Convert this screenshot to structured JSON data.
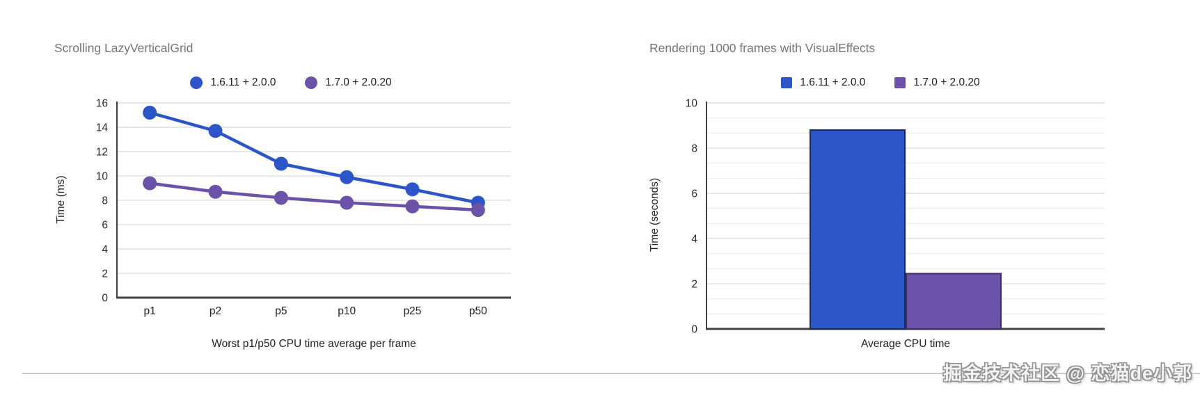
{
  "chart_data": [
    {
      "type": "line",
      "title": "Scrolling LazyVerticalGrid",
      "categories": [
        "p1",
        "p2",
        "p5",
        "p10",
        "p25",
        "p50"
      ],
      "series": [
        {
          "name": "1.6.11 + 2.0.0",
          "color": "#2c55c8",
          "values": [
            15.2,
            13.7,
            11.0,
            9.9,
            8.9,
            7.8
          ]
        },
        {
          "name": "1.7.0 + 2.0.20",
          "color": "#6a52a8",
          "values": [
            9.4,
            8.7,
            8.2,
            7.8,
            7.5,
            7.2
          ]
        }
      ],
      "xlabel": "Worst p1/p50 CPU time average per frame",
      "ylabel": "Time (ms)",
      "ylim": [
        0,
        16
      ],
      "yticks": [
        0,
        2,
        4,
        6,
        8,
        10,
        12,
        14,
        16
      ],
      "legend_position": "top",
      "grid": true
    },
    {
      "type": "bar",
      "title": "Rendering 1000 frames with VisualEffects",
      "categories": [
        "Average CPU time"
      ],
      "series": [
        {
          "name": "1.6.11 + 2.0.0",
          "color": "#2c55c8",
          "border": "#1b2a55",
          "values": [
            8.8
          ]
        },
        {
          "name": "1.7.0 + 2.0.20",
          "color": "#6a52a8",
          "border": "#3e2f63",
          "values": [
            2.45
          ]
        }
      ],
      "xlabel": "",
      "ylabel": "Time (seconds)",
      "ylim": [
        0,
        10
      ],
      "yticks": [
        0,
        2,
        4,
        6,
        8,
        10
      ],
      "minor_gridlines": "thirds",
      "legend_position": "top",
      "grid": true
    }
  ],
  "style": {
    "title_color": "#757575",
    "grid_color": "#d9d9d9",
    "minor_grid_color": "#ececec",
    "axis_color": "#424242",
    "tick_label_color": "#2a2a2a",
    "category_label_color": "#202124"
  },
  "watermark": {
    "text": "掘金技术社区 @ 恋猫de小郭"
  }
}
